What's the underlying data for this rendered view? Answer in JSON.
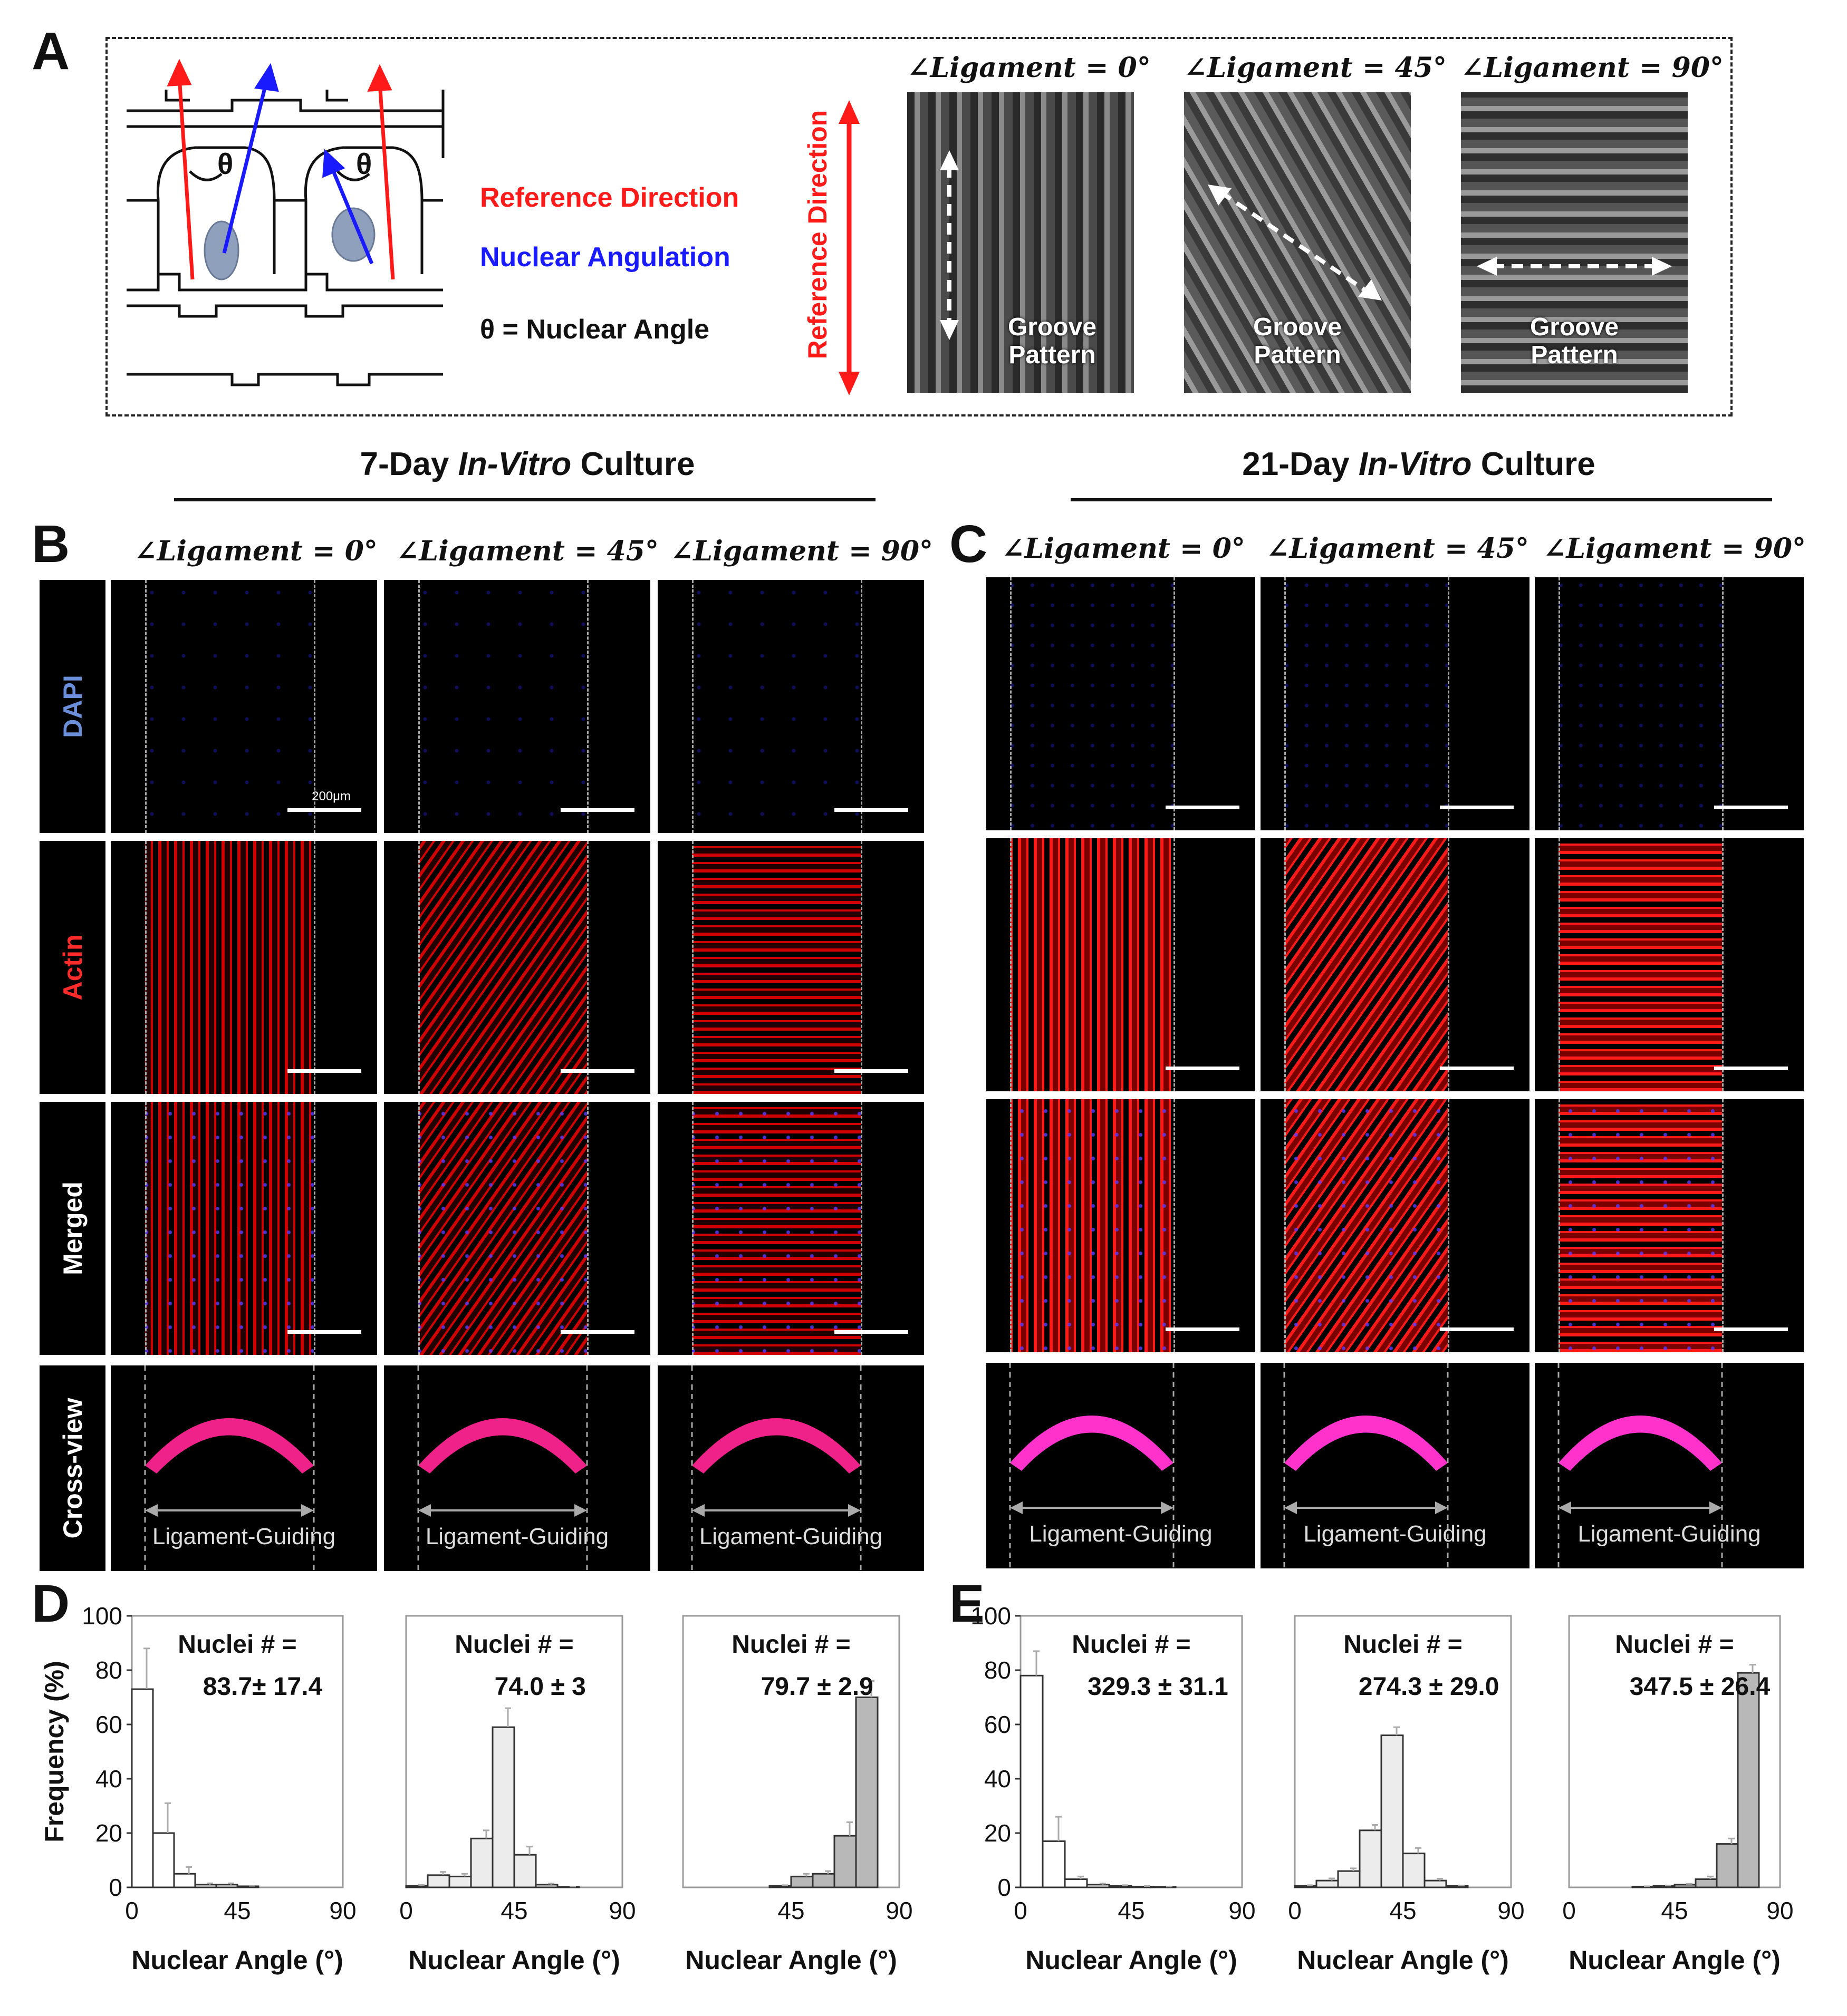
{
  "panel_letters": {
    "a": "A",
    "b": "B",
    "c": "C",
    "d": "D",
    "e": "E"
  },
  "panel_a": {
    "legend_reference": "Reference Direction",
    "legend_nuclear": "Nuclear Angulation",
    "legend_theta": "θ = Nuclear Angle",
    "theta_symbol": "θ",
    "side_label": "Reference Direction",
    "sem_headers": [
      "∠Ligament = 0°",
      "∠Ligament = 45°",
      "∠Ligament = 90°"
    ],
    "sem_caption": "Groove\nPattern",
    "colors": {
      "reference": "#ff1a1a",
      "nuclear": "#1a1aff",
      "nucleus_fill": "#8fa0bd"
    }
  },
  "section_titles": {
    "b_prefix": "7-Day ",
    "c_prefix": "21-Day ",
    "italic": "In-Vitro",
    "suffix": " Culture"
  },
  "column_headers_b": [
    "∠Ligament = 0°",
    "∠Ligament = 45°",
    "∠Ligament = 90°"
  ],
  "column_headers_c": [
    "∠Ligament = 0°",
    "∠Ligament = 45°",
    "∠Ligament = 90°"
  ],
  "row_labels": [
    {
      "text": "DAPI",
      "color": "#6a8fd8"
    },
    {
      "text": "Actin",
      "color": "#ff2a2a"
    },
    {
      "text": "Merged",
      "color": "#ffffff"
    },
    {
      "text": "Cross-view",
      "color": "#ffffff"
    }
  ],
  "scale_bar_label": "200μm",
  "cross_view_label": "Ligament-Guiding",
  "chart_data": [
    {
      "type": "bar",
      "panel": "D",
      "title": "Nuclei # =",
      "subtitle": "83.7± 17.4",
      "xlabel": "Nuclear Angle (°)",
      "ylabel": "Frequency (%)",
      "xlim": [
        0,
        90
      ],
      "ylim": [
        0,
        100
      ],
      "xticks": [
        0,
        45,
        90
      ],
      "yticks": [
        0,
        20,
        40,
        60,
        80,
        100
      ],
      "bin_width": 9,
      "values": [
        73,
        20,
        5,
        1,
        1,
        0.4,
        0,
        0,
        0,
        0
      ],
      "errors": [
        15,
        11,
        2.5,
        0.5,
        0.5,
        0.2,
        0,
        0,
        0,
        0
      ],
      "fill": "#ffffff"
    },
    {
      "type": "bar",
      "panel": "D",
      "title": "Nuclei # =",
      "subtitle": "74.0 ± 3",
      "xlabel": "Nuclear Angle (°)",
      "ylabel": "",
      "xlim": [
        0,
        90
      ],
      "ylim": [
        0,
        100
      ],
      "xticks": [
        0,
        45,
        90
      ],
      "yticks": [],
      "bin_width": 9,
      "values": [
        0.5,
        4.5,
        4,
        18,
        59,
        12,
        1,
        0.2,
        0,
        0
      ],
      "errors": [
        0.4,
        1.2,
        1,
        3,
        7,
        3,
        0.4,
        0.1,
        0,
        0
      ],
      "fill": "#ececec"
    },
    {
      "type": "bar",
      "panel": "D",
      "title": "Nuclei # =",
      "subtitle": "79.7 ± 2.9",
      "xlabel": "Nuclear Angle (°)",
      "ylabel": "",
      "xlim": [
        0,
        90
      ],
      "ylim": [
        0,
        100
      ],
      "xticks": [
        45,
        90
      ],
      "yticks": [],
      "bin_width": 9,
      "values": [
        0,
        0,
        0,
        0,
        0.5,
        4,
        5,
        19,
        70,
        0
      ],
      "errors": [
        0,
        0,
        0,
        0,
        0.3,
        1,
        1,
        5,
        6,
        0
      ],
      "fill": "#b8b8b8",
      "x_start": 9
    },
    {
      "type": "bar",
      "panel": "E",
      "title": "Nuclei # =",
      "subtitle": "329.3 ± 31.1",
      "xlabel": "Nuclear Angle (°)",
      "ylabel": "",
      "xlim": [
        0,
        90
      ],
      "ylim": [
        0,
        100
      ],
      "xticks": [
        0,
        45,
        90
      ],
      "yticks": [
        0,
        20,
        40,
        60,
        80,
        100
      ],
      "bin_width": 9,
      "values": [
        78,
        17,
        3,
        1,
        0.5,
        0.3,
        0.2,
        0,
        0,
        0
      ],
      "errors": [
        9,
        9,
        1,
        0.4,
        0.3,
        0.2,
        0.1,
        0,
        0,
        0
      ],
      "fill": "#ffffff"
    },
    {
      "type": "bar",
      "panel": "E",
      "title": "Nuclei # =",
      "subtitle": "274.3 ± 29.0",
      "xlabel": "Nuclear Angle (°)",
      "ylabel": "",
      "xlim": [
        0,
        90
      ],
      "ylim": [
        0,
        100
      ],
      "xticks": [
        0,
        45,
        90
      ],
      "yticks": [],
      "bin_width": 9,
      "values": [
        0.5,
        2.5,
        6,
        21,
        56,
        12.5,
        2.5,
        0.5,
        0,
        0
      ],
      "errors": [
        0.3,
        0.8,
        1,
        2,
        3,
        2,
        0.7,
        0.2,
        0,
        0
      ],
      "fill": "#ececec"
    },
    {
      "type": "bar",
      "panel": "E",
      "title": "Nuclei # =",
      "subtitle": "347.5 ± 26.4",
      "xlabel": "Nuclear Angle (°)",
      "ylabel": "",
      "xlim": [
        0,
        90
      ],
      "ylim": [
        0,
        100
      ],
      "xticks": [
        0,
        45,
        90
      ],
      "yticks": [],
      "bin_width": 9,
      "values": [
        0,
        0,
        0,
        0.3,
        0.5,
        1,
        3,
        16,
        79,
        0
      ],
      "errors": [
        0,
        0,
        0,
        0.1,
        0.2,
        0.3,
        1,
        2,
        3,
        0
      ],
      "fill": "#b8b8b8",
      "x_start": 9
    }
  ]
}
